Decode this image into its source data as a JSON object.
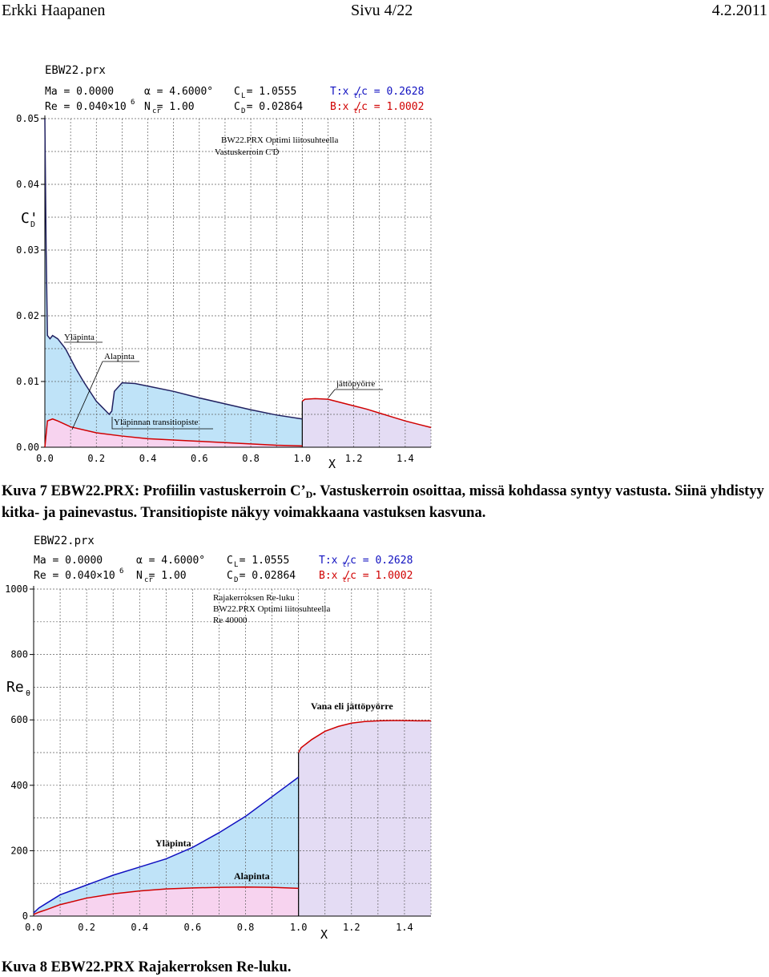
{
  "header": {
    "author": "Erkki Haapanen",
    "page": "Sivu 4/22",
    "date": "4.2.2011"
  },
  "figure1": {
    "file": "EBW22.prx",
    "params": {
      "ma": "Ma = 0.0000",
      "re": "Re = 0.040×10",
      "re_exp": "6",
      "alpha": "α = 4.6000°",
      "ncr": "N   = 1.00",
      "ncr_sub": "cr",
      "cl": "C   = 1.0555",
      "cl_sub": "L",
      "cd": "C   = 0.02864",
      "cd_sub": "D",
      "top": "T:x  /c = 0.2628",
      "top_sub": "tr",
      "bot": "B:x  /c = 1.0002",
      "bot_sub": "tr"
    },
    "ylabel": "C'",
    "ylabel_sub": "D",
    "xlabel": "X",
    "yticks": [
      "0.05",
      "0.04",
      "0.03",
      "0.02",
      "0.01",
      "0.00"
    ],
    "xticks": [
      "0.0",
      "0.2",
      "0.4",
      "0.6",
      "0.8",
      "1.0",
      "1.2",
      "1.4"
    ],
    "title_box": {
      "line1": "BW22.PRX Optimi liitosuhteella",
      "line2": "Vastuskerroin C'D"
    },
    "annotations": {
      "upper": "Yläpinta",
      "lower": "Alapinta",
      "wake": "jättöpyörre",
      "transition": "Yläpinnan transitiopiste"
    },
    "colors": {
      "upper": "#1010c0",
      "lower": "#d00000",
      "upper_fill": "#bfe3f8",
      "lower_fill": "#f7d3ef",
      "wake_fill": "#e4dcf4"
    }
  },
  "caption1": {
    "label": "Kuva  7 EBW22.PRX: Profiilin vastuskerroin C’",
    "sub": "D",
    "rest": ". Vastuskerroin osoittaa, missä kohdassa syntyy vastusta. Siinä yhdistyy kitka- ja painevastus. Transitiopiste näkyy voimakkaana vastuksen kasvuna."
  },
  "figure2": {
    "file": "EBW22.prx",
    "params": {
      "ma": "Ma = 0.0000",
      "re": "Re = 0.040×10",
      "re_exp": "6",
      "alpha": "α = 4.6000°",
      "ncr": "N   = 1.00",
      "ncr_sub": "cr",
      "cl": "C   = 1.0555",
      "cl_sub": "L",
      "cd": "C   = 0.02864",
      "cd_sub": "D",
      "top": "T:x  /c = 0.2628",
      "top_sub": "tr",
      "bot": "B:x  /c = 1.0002",
      "bot_sub": "tr"
    },
    "ylabel": "Re",
    "ylabel_sub": "θ",
    "xlabel": "X",
    "yticks": [
      "1000",
      "800",
      "600",
      "400",
      "200",
      "0"
    ],
    "xticks": [
      "0.0",
      "0.2",
      "0.4",
      "0.6",
      "0.8",
      "1.0",
      "1.2",
      "1.4"
    ],
    "title_box": {
      "line1": "Rajakerroksen Re-luku",
      "line2": "BW22.PRX Optimi liitosuhteella",
      "line3": "Re 40000"
    },
    "annotations": {
      "wake": "Vana eli jättöpyörre",
      "upper": "Yläpinta",
      "lower": "Alapinta"
    }
  },
  "caption2": {
    "label": "Kuva  8 EBW22.PRX Rajakerroksen Re-luku."
  },
  "chart_data": [
    {
      "type": "area",
      "xlabel": "X",
      "ylabel": "C'D",
      "xlim": [
        0.0,
        1.5
      ],
      "ylim": [
        0.0,
        0.05
      ],
      "grid": true,
      "series": [
        {
          "name": "Yläpinta",
          "x": [
            0.0,
            0.005,
            0.01,
            0.02,
            0.03,
            0.05,
            0.08,
            0.1,
            0.12,
            0.15,
            0.2,
            0.25,
            0.26,
            0.27,
            0.3,
            0.35,
            0.4,
            0.5,
            0.6,
            0.7,
            0.8,
            0.9,
            1.0
          ],
          "y": [
            0.05,
            0.03,
            0.017,
            0.0165,
            0.017,
            0.0165,
            0.015,
            0.0135,
            0.012,
            0.01,
            0.007,
            0.005,
            0.0055,
            0.0085,
            0.0098,
            0.0097,
            0.0093,
            0.0085,
            0.0075,
            0.0066,
            0.0057,
            0.0049,
            0.0043
          ]
        },
        {
          "name": "Alapinta",
          "x": [
            0.0,
            0.01,
            0.03,
            0.05,
            0.1,
            0.2,
            0.3,
            0.4,
            0.5,
            0.6,
            0.7,
            0.8,
            0.9,
            1.0
          ],
          "y": [
            0.0,
            0.004,
            0.0043,
            0.004,
            0.0031,
            0.0022,
            0.0017,
            0.0013,
            0.0011,
            0.0009,
            0.0007,
            0.0005,
            0.0003,
            0.0002
          ]
        },
        {
          "name": "jättöpyörre",
          "x": [
            1.0,
            1.01,
            1.05,
            1.1,
            1.15,
            1.2,
            1.25,
            1.3,
            1.35,
            1.4,
            1.45,
            1.5
          ],
          "y": [
            0.007,
            0.0073,
            0.0074,
            0.0073,
            0.0068,
            0.0063,
            0.0058,
            0.0052,
            0.0046,
            0.004,
            0.0035,
            0.003
          ]
        }
      ]
    },
    {
      "type": "area",
      "xlabel": "X",
      "ylabel": "Reθ",
      "xlim": [
        0.0,
        1.5
      ],
      "ylim": [
        0,
        1000
      ],
      "grid": true,
      "series": [
        {
          "name": "Yläpinta",
          "x": [
            0.0,
            0.02,
            0.05,
            0.1,
            0.2,
            0.3,
            0.4,
            0.5,
            0.6,
            0.7,
            0.8,
            0.9,
            1.0
          ],
          "y": [
            10,
            25,
            40,
            65,
            95,
            125,
            150,
            175,
            210,
            255,
            305,
            365,
            425
          ]
        },
        {
          "name": "Alapinta",
          "x": [
            0.0,
            0.02,
            0.05,
            0.1,
            0.2,
            0.3,
            0.4,
            0.5,
            0.6,
            0.7,
            0.8,
            0.9,
            1.0
          ],
          "y": [
            5,
            12,
            20,
            35,
            55,
            68,
            77,
            83,
            86,
            88,
            89,
            88,
            85
          ]
        },
        {
          "name": "Vana eli jättöpyörre",
          "x": [
            1.0,
            1.01,
            1.05,
            1.1,
            1.15,
            1.2,
            1.25,
            1.3,
            1.35,
            1.4,
            1.45,
            1.5
          ],
          "y": [
            500,
            515,
            540,
            565,
            580,
            590,
            595,
            597,
            598,
            598,
            597,
            597
          ]
        }
      ]
    }
  ]
}
